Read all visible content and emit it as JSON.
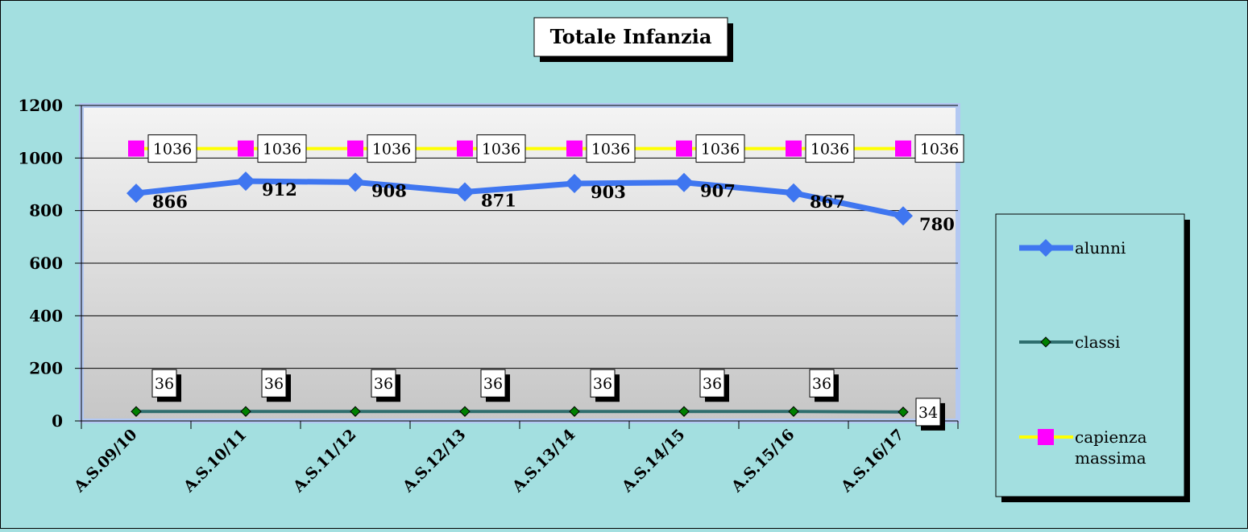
{
  "chart_data": {
    "type": "line",
    "title": "Totale Infanzia",
    "xlabel": "",
    "ylabel": "",
    "categories": [
      "A.S.09/10",
      "A.S.10/11",
      "A.S.11/12",
      "A.S.12/13",
      "A.S.13/14",
      "A.S.14/15",
      "A.S.15/16",
      "A.S.16/17"
    ],
    "ylim": [
      0,
      1200
    ],
    "yticks": [
      0,
      200,
      400,
      600,
      800,
      1000,
      1200
    ],
    "grid": true,
    "legend_position": "right",
    "series": [
      {
        "name": "alunni",
        "values": [
          866,
          912,
          908,
          871,
          903,
          907,
          867,
          780
        ],
        "color": "#3f76f0",
        "marker": "diamond"
      },
      {
        "name": "classi",
        "values": [
          36,
          36,
          36,
          36,
          36,
          36,
          36,
          34
        ],
        "color": "#2e6e6e",
        "marker": "diamond-small"
      },
      {
        "name": "capienza massima",
        "values": [
          1036,
          1036,
          1036,
          1036,
          1036,
          1036,
          1036,
          1036
        ],
        "color": "#ffff00",
        "marker": "square",
        "marker_color": "#ff00ff"
      }
    ]
  }
}
